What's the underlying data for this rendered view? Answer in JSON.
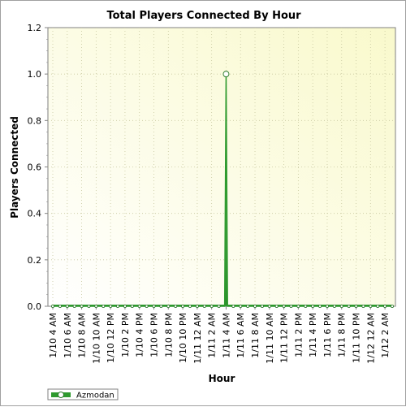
{
  "chart_data": {
    "type": "area",
    "title": "Total Players Connected By Hour",
    "xlabel": "Hour",
    "ylabel": "Players Connected",
    "ylim": [
      0,
      1.2
    ],
    "yticks": [
      0.0,
      0.2,
      0.4,
      0.6,
      0.8,
      1.0,
      1.2
    ],
    "ytick_labels": [
      "0.0",
      "0.2",
      "0.4",
      "0.6",
      "0.8",
      "1.0",
      "1.2"
    ],
    "xticks": [
      "1/10 4 AM",
      "1/10 6 AM",
      "1/10 8 AM",
      "1/10 10 AM",
      "1/10 12 PM",
      "1/10 2 PM",
      "1/10 4 PM",
      "1/10 6 PM",
      "1/10 8 PM",
      "1/10 10 PM",
      "1/11 12 AM",
      "1/11 2 AM",
      "1/11 4 AM",
      "1/11 6 AM",
      "1/11 8 AM",
      "1/11 10 AM",
      "1/11 12 PM",
      "1/11 2 PM",
      "1/11 4 PM",
      "1/11 6 PM",
      "1/11 8 PM",
      "1/11 10 PM",
      "1/12 12 AM",
      "1/12 2 AM"
    ],
    "x_range_hours": [
      0,
      47
    ],
    "grid": true,
    "legend_position": "bottom-left",
    "colors": {
      "series": "#2e9a2e",
      "fill": "#3aa63a",
      "background_light": "#ffffff",
      "background_warm": "#fbfbd8",
      "grid": "#c8c8a0"
    },
    "series": [
      {
        "name": "Azmodan",
        "x_hours": [
          0,
          22,
          23,
          23.8,
          24,
          24.2,
          25,
          26,
          47
        ],
        "values": [
          0,
          0,
          0,
          0,
          1,
          0,
          0,
          0,
          0
        ],
        "markers": [
          0,
          1,
          2,
          3,
          4,
          5,
          6,
          7,
          8,
          9,
          10,
          11,
          12,
          13,
          14,
          15,
          16,
          17,
          18,
          19,
          20,
          21,
          22,
          23,
          24,
          25,
          26,
          27,
          28,
          29,
          30,
          31,
          32,
          33,
          34,
          35,
          36,
          37,
          38,
          39,
          40,
          41,
          42,
          43,
          44,
          45,
          46,
          47
        ]
      }
    ]
  }
}
